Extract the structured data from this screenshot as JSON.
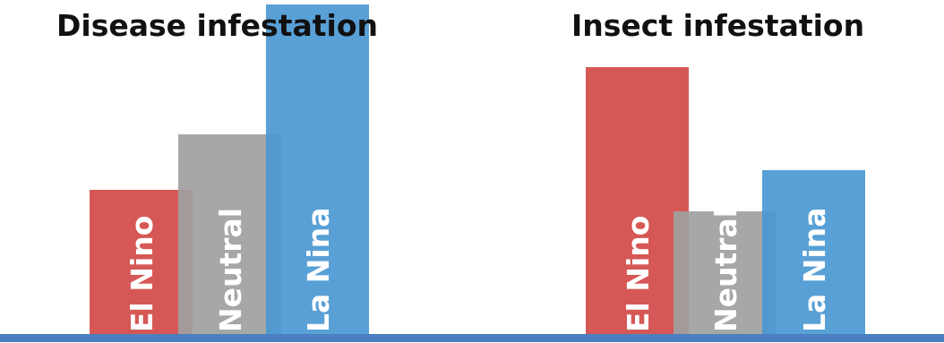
{
  "chart_data": [
    {
      "type": "bar",
      "title": "Disease infestation",
      "categories": [
        "El Nino",
        "Neutral",
        "La Nina"
      ],
      "values": [
        163,
        225,
        370
      ],
      "colors": [
        "#d24a48",
        "#9f9f9f",
        "#4a98d2"
      ],
      "grid": false,
      "legend": "none",
      "labels": "inside bars, vertical"
    },
    {
      "type": "bar",
      "title": "Insect infestation",
      "categories": [
        "El Nino",
        "Neutral",
        "La Nina"
      ],
      "values": [
        300,
        139,
        185
      ],
      "colors": [
        "#d24a48",
        "#9f9f9f",
        "#4a98d2"
      ],
      "grid": false,
      "legend": "none",
      "labels": "inside bars, vertical"
    }
  ],
  "baseline_color": "#4a80c0"
}
